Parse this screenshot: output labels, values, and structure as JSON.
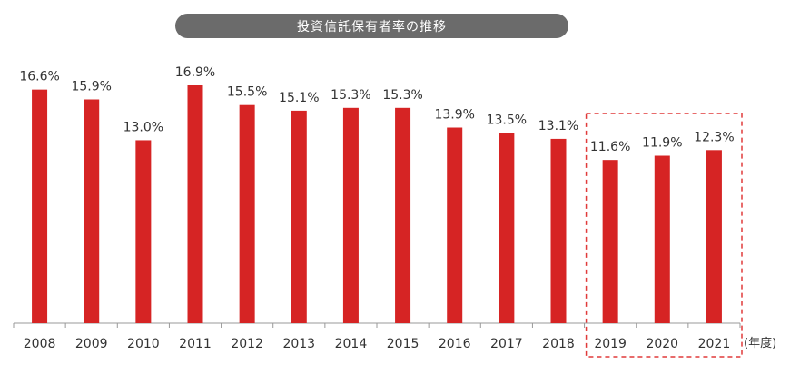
{
  "title": "投資信託保有者率の推移",
  "unit_label": "(年度)",
  "colors": {
    "bar": "#d62424",
    "highlight_border": "#e03a3a",
    "title_bg": "#6b6b6b",
    "axis": "#999999"
  },
  "chart_data": {
    "type": "bar",
    "categories": [
      "2008",
      "2009",
      "2010",
      "2011",
      "2012",
      "2013",
      "2014",
      "2015",
      "2016",
      "2017",
      "2018",
      "2019",
      "2020",
      "2021"
    ],
    "values": [
      16.6,
      15.9,
      13.0,
      16.9,
      15.5,
      15.1,
      15.3,
      15.3,
      13.9,
      13.5,
      13.1,
      11.6,
      11.9,
      12.3
    ],
    "value_labels": [
      "16.6%",
      "15.9%",
      "13.0%",
      "16.9%",
      "15.5%",
      "15.1%",
      "15.3%",
      "15.3%",
      "13.9%",
      "13.5%",
      "13.1%",
      "11.6%",
      "11.9%",
      "12.3%"
    ],
    "title": "投資信託保有者率の推移",
    "xlabel": "(年度)",
    "ylabel": "",
    "ylim": [
      0,
      16.9
    ],
    "grid": false,
    "highlight": {
      "categories": [
        "2019",
        "2020",
        "2021"
      ],
      "style": "dashed-box"
    }
  }
}
